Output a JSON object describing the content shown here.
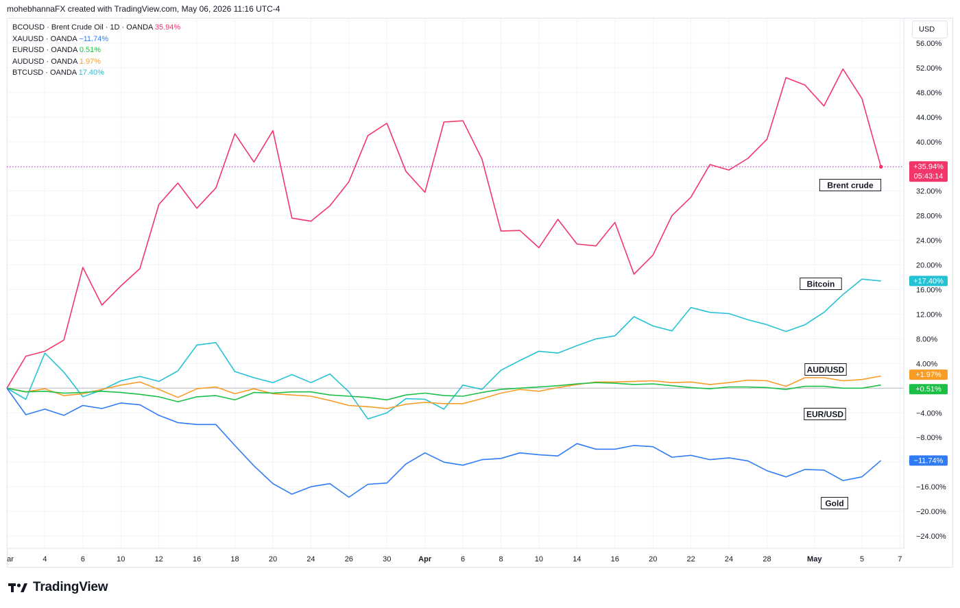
{
  "header": {
    "text": "mohebhannaFX created with TradingView.com, May 06, 2026 11:16 UTC-4"
  },
  "toolbar": {
    "currency": "USD"
  },
  "footer": {
    "logo_text": "TradingView",
    "logo_icon": "tradingview-logo-icon"
  },
  "legend": [
    {
      "symbol": "BCOUSD · Brent Crude Oil · 1D · OANDA",
      "value": "35.94%",
      "color": "#f23669"
    },
    {
      "symbol": "XAUUSD · OANDA",
      "value": "−11.74%",
      "color": "#2f7bf5"
    },
    {
      "symbol": "EURUSD · OANDA",
      "value": "0.51%",
      "color": "#1bbf45"
    },
    {
      "symbol": "AUDUSD · OANDA",
      "value": "1.97%",
      "color": "#f89c26"
    },
    {
      "symbol": "BTCUSD · OANDA",
      "value": "17.40%",
      "color": "#25c1d4"
    }
  ],
  "chart_data": {
    "type": "line",
    "ylim": [
      -26,
      60
    ],
    "grid": true,
    "y_ticks": [
      "56.00%",
      "52.00%",
      "48.00%",
      "44.00%",
      "40.00%",
      "32.00%",
      "28.00%",
      "24.00%",
      "20.00%",
      "16.00%",
      "12.00%",
      "8.00%",
      "4.00%",
      "−4.00%",
      "−8.00%",
      "−12.00%",
      "−16.00%",
      "−20.00%",
      "−24.00%"
    ],
    "y_tick_values": [
      56,
      52,
      48,
      44,
      40,
      32,
      28,
      24,
      20,
      16,
      12,
      8,
      4,
      -4,
      -8,
      -12,
      -16,
      -20,
      -24
    ],
    "x_ticks": [
      "ar",
      "4",
      "6",
      "10",
      "12",
      "16",
      "18",
      "20",
      "24",
      "26",
      "30",
      "Apr",
      "6",
      "8",
      "10",
      "14",
      "16",
      "20",
      "22",
      "24",
      "28",
      "May",
      "5",
      "7"
    ],
    "x_tick_index": [
      0,
      2,
      4,
      6,
      8,
      10,
      12,
      14,
      16,
      18,
      20,
      22,
      24,
      26,
      28,
      30,
      32,
      34,
      36,
      38,
      40,
      42.5,
      45,
      47
    ],
    "x_index_range": [
      0,
      47.2
    ],
    "series": [
      {
        "name": "Brent crude",
        "color": "#f23669",
        "end_label": "+35.94%",
        "countdown": "05:43:14",
        "values": [
          0,
          5.2,
          6,
          7.8,
          19.6,
          13.5,
          16.6,
          19.4,
          29.8,
          33.3,
          29.2,
          32.5,
          41.3,
          36.7,
          41.8,
          27.6,
          27.1,
          29.6,
          33.5,
          41,
          43,
          35.2,
          31.8,
          43.2,
          43.4,
          37.2,
          25.5,
          25.6,
          22.8,
          27.4,
          23.4,
          23.1,
          26.9,
          18.5,
          21.6,
          28,
          31,
          36.3,
          35.4,
          37.3,
          40.4,
          50.4,
          49.2,
          45.8,
          51.8,
          47,
          35.94
        ]
      },
      {
        "name": "Bitcoin",
        "color": "#25c1d4",
        "end_label": "+17.40%",
        "values": [
          0,
          -1.8,
          5.7,
          2.6,
          -1.4,
          -0.3,
          1.2,
          1.9,
          1.1,
          2.8,
          7,
          7.4,
          2.7,
          1.7,
          0.9,
          2.2,
          0.9,
          2.3,
          -0.6,
          -5,
          -4,
          -1.7,
          -1.8,
          -3.4,
          0.5,
          -0.2,
          2.9,
          4.5,
          6,
          5.7,
          6.9,
          8,
          8.5,
          11.6,
          10.1,
          9.3,
          13.1,
          12.3,
          12.1,
          11.1,
          10.3,
          9.2,
          10.3,
          12.3,
          15.2,
          17.7,
          17.4
        ]
      },
      {
        "name": "AUD/USD",
        "color": "#f89c26",
        "end_label": "+1.97%",
        "values": [
          0,
          -0.6,
          -0.1,
          -1.2,
          -0.9,
          -0.2,
          0.5,
          1,
          -0.2,
          -1.5,
          -0.1,
          0.2,
          -0.9,
          -0.1,
          -0.9,
          -1.1,
          -1.3,
          -2,
          -2.8,
          -3,
          -3.3,
          -2.6,
          -2.3,
          -2.5,
          -2.5,
          -1.7,
          -0.8,
          -0.2,
          -0.5,
          0.1,
          0.6,
          1,
          1,
          1.1,
          1.2,
          0.9,
          1,
          0.6,
          0.9,
          1.3,
          1.2,
          0.3,
          1.7,
          1.7,
          1.2,
          1.4,
          1.97
        ]
      },
      {
        "name": "EUR/USD",
        "color": "#1bbf45",
        "end_label": "+0.51%",
        "values": [
          0,
          -0.6,
          -0.5,
          -0.8,
          -0.7,
          -0.5,
          -0.7,
          -1,
          -1.4,
          -2.2,
          -1.4,
          -1.2,
          -1.9,
          -0.7,
          -0.8,
          -0.6,
          -0.6,
          -1.1,
          -1.3,
          -1.5,
          -1.9,
          -1.1,
          -0.8,
          -1.2,
          -1.3,
          -0.7,
          -0.2,
          0,
          0.2,
          0.4,
          0.7,
          0.9,
          0.8,
          0.6,
          0.7,
          0.4,
          0.1,
          -0.1,
          0.2,
          0.2,
          0.1,
          -0.2,
          0.3,
          0.3,
          0,
          0,
          0.51
        ]
      },
      {
        "name": "Gold",
        "color": "#2f7bf5",
        "end_label": "−11.74%",
        "values": [
          0,
          -4.3,
          -3.4,
          -4.4,
          -2.8,
          -3.3,
          -2.4,
          -2.7,
          -4.4,
          -5.6,
          -5.9,
          -5.9,
          -9.3,
          -12.6,
          -15.5,
          -17.2,
          -16,
          -15.5,
          -17.7,
          -15.6,
          -15.4,
          -12.3,
          -10.5,
          -12,
          -12.5,
          -11.6,
          -11.4,
          -10.5,
          -10.8,
          -11,
          -9,
          -9.9,
          -9.9,
          -9.3,
          -9.5,
          -11.2,
          -10.9,
          -11.6,
          -11.3,
          -11.8,
          -13.4,
          -14.4,
          -13.2,
          -13.3,
          -15,
          -14.4,
          -11.74
        ]
      }
    ],
    "annotations": [
      {
        "text": "Brent crude",
        "series": "Brent crude"
      },
      {
        "text": "Bitcoin",
        "series": "Bitcoin"
      },
      {
        "text": "AUD/USD",
        "series": "AUD/USD"
      },
      {
        "text": "EUR/USD",
        "series": "EUR/USD"
      },
      {
        "text": "Gold",
        "series": "Gold"
      }
    ]
  }
}
